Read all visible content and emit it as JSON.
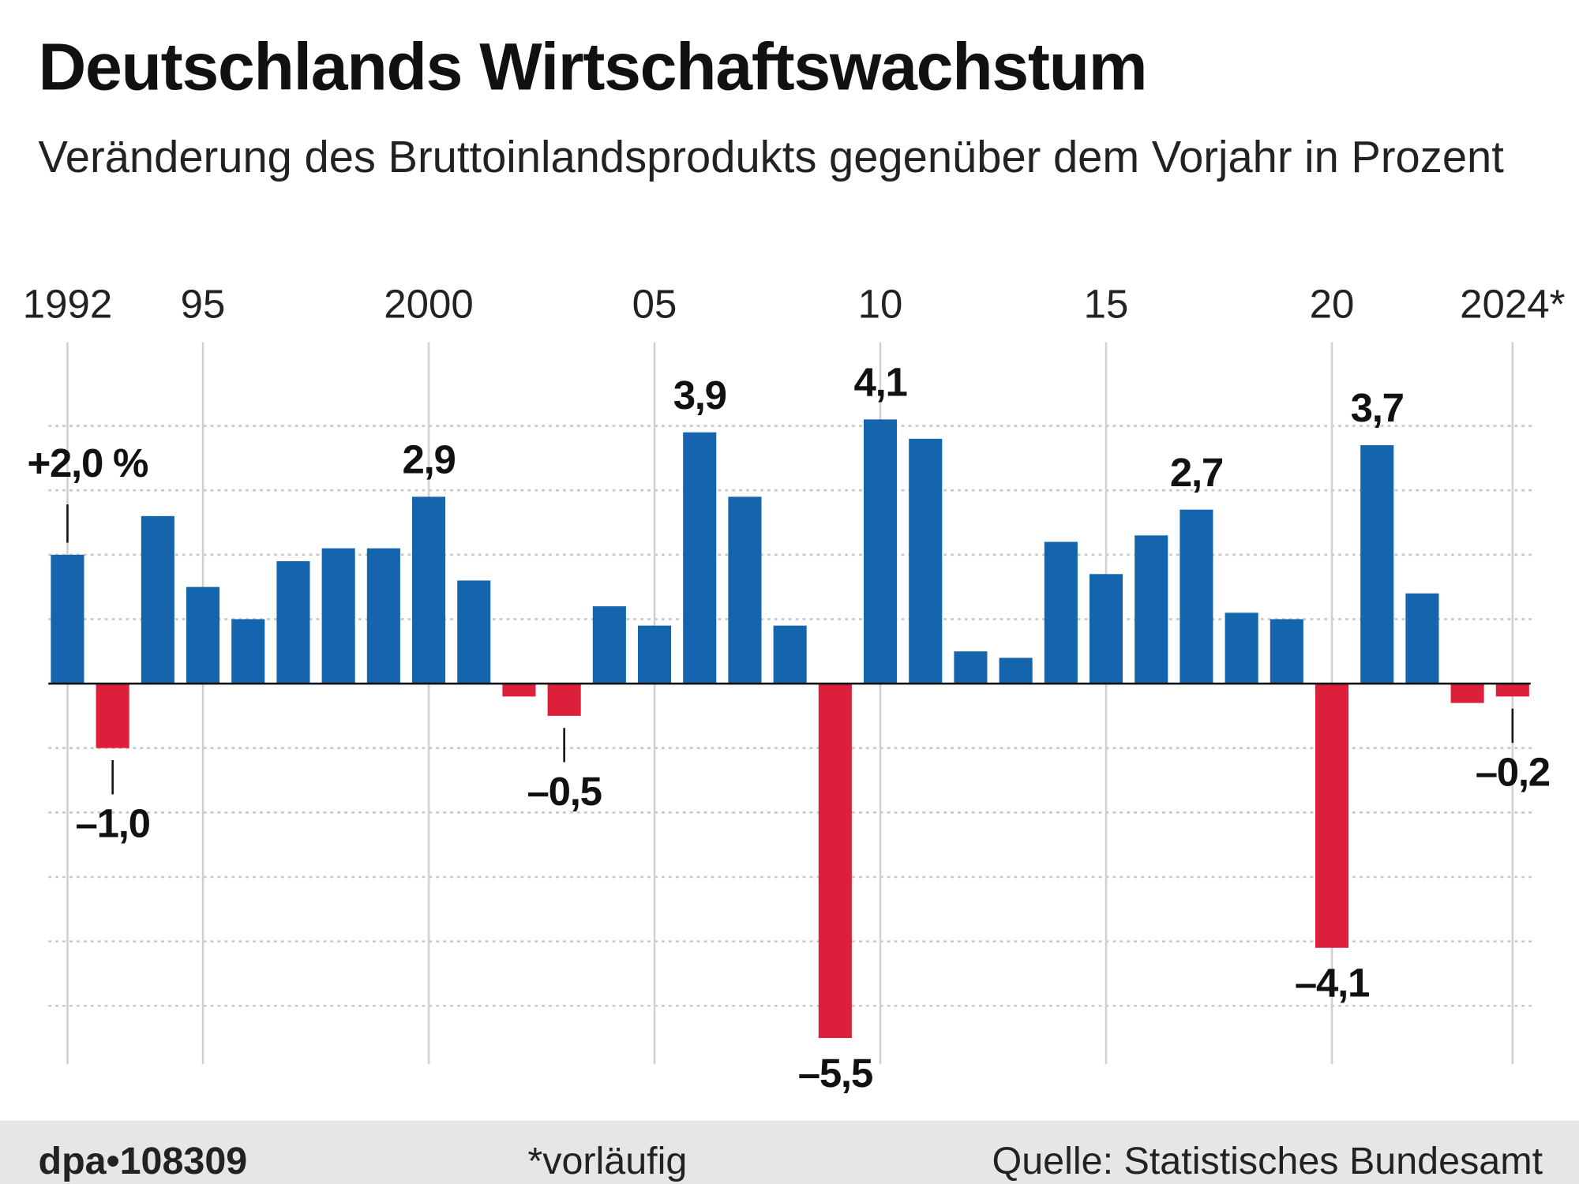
{
  "chart_data": {
    "type": "bar",
    "title": "Deutschlands Wirtschaftswachstum",
    "subtitle": "Veränderung des Bruttoinlandsprodukts gegenüber dem Vorjahr in Prozent",
    "categories": [
      "1992",
      null,
      null,
      "95",
      null,
      null,
      null,
      null,
      "2000",
      null,
      null,
      null,
      null,
      "05",
      null,
      null,
      null,
      null,
      "10",
      null,
      null,
      null,
      null,
      "15",
      null,
      null,
      null,
      null,
      "20",
      null,
      null,
      null,
      "2024*"
    ],
    "values": [
      2.0,
      -1.0,
      2.6,
      1.5,
      1.0,
      1.9,
      2.1,
      2.1,
      2.9,
      1.6,
      -0.2,
      -0.5,
      1.2,
      0.9,
      3.9,
      2.9,
      0.9,
      -5.5,
      4.1,
      3.8,
      0.5,
      0.4,
      2.2,
      1.7,
      2.3,
      2.7,
      1.1,
      1.0,
      -4.1,
      3.7,
      1.4,
      -0.3,
      -0.2
    ],
    "value_labels": [
      "+2,0 %",
      "–1,0",
      null,
      null,
      null,
      null,
      null,
      null,
      "2,9",
      null,
      null,
      "–0,5",
      null,
      null,
      "3,9",
      null,
      null,
      "–5,5",
      "4,1",
      null,
      null,
      null,
      null,
      null,
      null,
      "2,7",
      null,
      null,
      "–4,1",
      "3,7",
      null,
      null,
      "–0,2"
    ],
    "colors": {
      "positive": "#1565ae",
      "negative": "#dc1f3b"
    },
    "ylim": [
      -6.0,
      4.5
    ],
    "ygrid": [
      -5,
      -4,
      -3,
      -2,
      -1,
      1,
      2,
      3,
      4
    ]
  },
  "footer": {
    "agency": "dpa•108309",
    "note": "*vorläufig",
    "source": "Quelle: Statistisches Bundesamt"
  }
}
